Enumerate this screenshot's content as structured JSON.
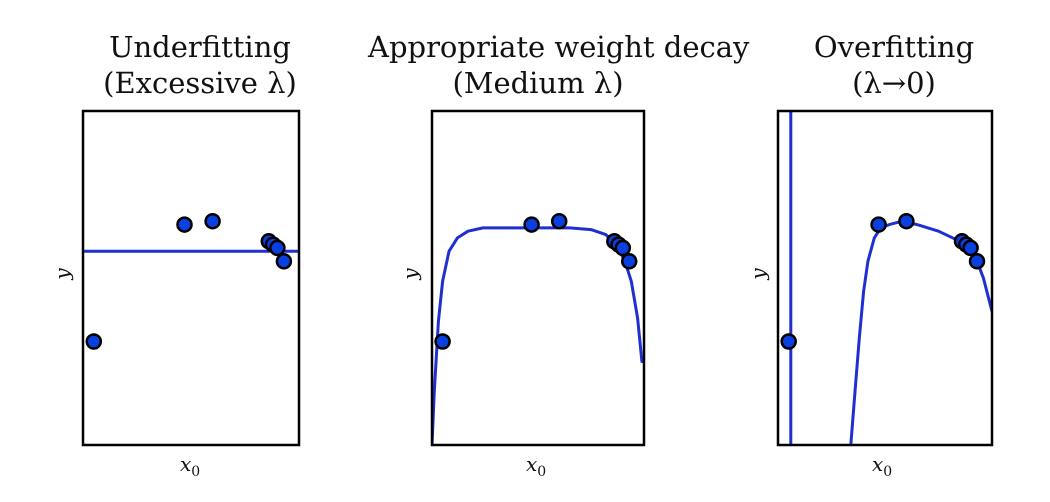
{
  "chart_data": [
    {
      "type": "scatter",
      "title_lines": [
        "Underfitting",
        "(Excessive λ)"
      ],
      "xlabel": "x",
      "xlabel_sub": "0",
      "ylabel": "y",
      "xlim": [
        0,
        1
      ],
      "ylim": [
        0,
        1
      ],
      "points": {
        "x": [
          0.05,
          0.47,
          0.6,
          0.86,
          0.88,
          0.9,
          0.93
        ],
        "y": [
          0.31,
          0.66,
          0.67,
          0.61,
          0.6,
          0.59,
          0.55
        ]
      },
      "fit": {
        "x": [
          0,
          1
        ],
        "y": [
          0.58,
          0.58
        ]
      },
      "series_color": "#0a3fe0",
      "line_color": "#1f2fd0"
    },
    {
      "type": "scatter",
      "title_lines": [
        "Appropriate weight decay",
        "(Medium λ)"
      ],
      "xlabel": "x",
      "xlabel_sub": "0",
      "ylabel": "y",
      "xlim": [
        0,
        1
      ],
      "ylim": [
        0,
        1
      ],
      "points": {
        "x": [
          0.05,
          0.47,
          0.6,
          0.86,
          0.88,
          0.9,
          0.93
        ],
        "y": [
          0.31,
          0.66,
          0.67,
          0.61,
          0.6,
          0.59,
          0.55
        ]
      },
      "fit": {
        "x": [
          0.0,
          0.01,
          0.03,
          0.05,
          0.08,
          0.12,
          0.17,
          0.24,
          0.35,
          0.5,
          0.65,
          0.75,
          0.82,
          0.87,
          0.91,
          0.94,
          0.97,
          0.99,
          1.0
        ],
        "y": [
          0.0,
          0.15,
          0.37,
          0.49,
          0.58,
          0.62,
          0.64,
          0.65,
          0.65,
          0.65,
          0.65,
          0.645,
          0.63,
          0.6,
          0.55,
          0.49,
          0.38,
          0.25,
          0.25
        ]
      },
      "series_color": "#0a3fe0",
      "line_color": "#1f2fd0"
    },
    {
      "type": "scatter",
      "title_lines": [
        "Overfitting",
        "(λ→0)"
      ],
      "xlabel": "x",
      "xlabel_sub": "0",
      "ylabel": "y",
      "xlim": [
        0,
        1
      ],
      "ylim": [
        0,
        1
      ],
      "points": {
        "x": [
          0.05,
          0.47,
          0.6,
          0.86,
          0.88,
          0.9,
          0.93
        ],
        "y": [
          0.31,
          0.66,
          0.67,
          0.61,
          0.6,
          0.59,
          0.55
        ]
      },
      "fit": [
        {
          "x": [
            0.06,
            0.06
          ],
          "y": [
            1.0,
            0.0
          ]
        },
        {
          "x": [
            0.34,
            0.36,
            0.38,
            0.4,
            0.42,
            0.45,
            0.48,
            0.52,
            0.58,
            0.65,
            0.75,
            0.85,
            0.9,
            0.93,
            0.96,
            0.98,
            1.0
          ],
          "y": [
            0.0,
            0.16,
            0.32,
            0.46,
            0.55,
            0.62,
            0.65,
            0.66,
            0.67,
            0.66,
            0.64,
            0.61,
            0.58,
            0.55,
            0.5,
            0.45,
            0.4
          ]
        }
      ],
      "series_color": "#0a3fe0",
      "line_color": "#1f2fd0"
    }
  ]
}
